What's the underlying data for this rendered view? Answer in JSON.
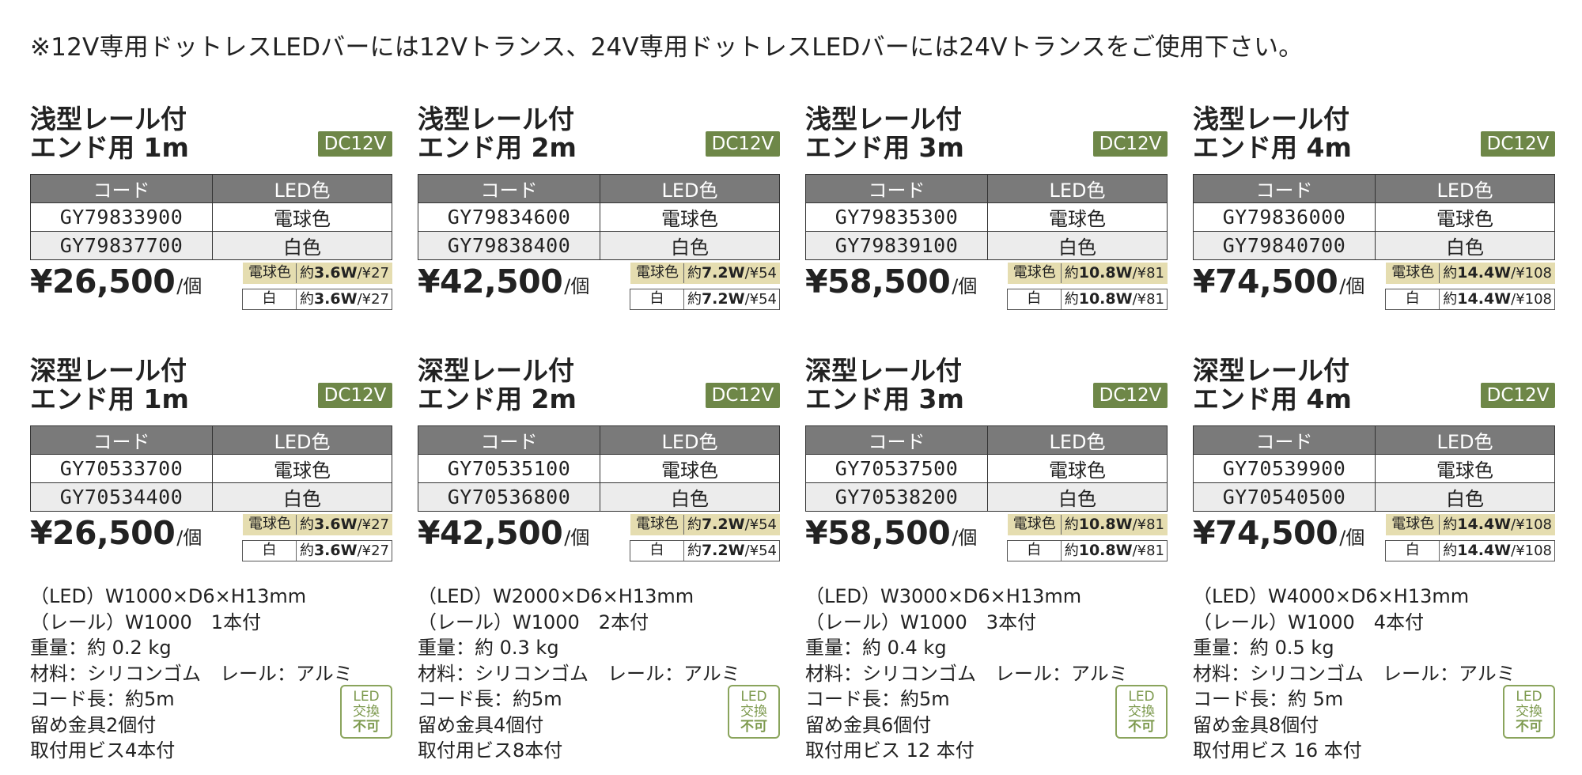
{
  "notice": "※12V専用ドットレスLEDバーには12Vトランス、24V専用ドットレスLEDバーには24Vトランスをご使用下さい。",
  "table_headers": {
    "code": "コード",
    "led_color": "LED色"
  },
  "dc_label": "DC12V",
  "price_unit": "/個",
  "watt_labels": {
    "bulb": "電球色",
    "white": "白",
    "approx": "約"
  },
  "led_badge": {
    "line1": "LED",
    "line2": "交換",
    "line3": "不可"
  },
  "cards": [
    {
      "title1": "浅型レール付",
      "title2": "エンド用 1m",
      "rows": [
        {
          "code": "GY79833900",
          "color": "電球色"
        },
        {
          "code": "GY79837700",
          "color": "白色"
        }
      ],
      "price": "¥26,500",
      "watt1": "3.6W",
      "cost1": "/¥27",
      "watt2": "3.6W",
      "cost2": "/¥27"
    },
    {
      "title1": "浅型レール付",
      "title2": "エンド用 2m",
      "rows": [
        {
          "code": "GY79834600",
          "color": "電球色"
        },
        {
          "code": "GY79838400",
          "color": "白色"
        }
      ],
      "price": "¥42,500",
      "watt1": "7.2W",
      "cost1": "/¥54",
      "watt2": "7.2W",
      "cost2": "/¥54"
    },
    {
      "title1": "浅型レール付",
      "title2": "エンド用 3m",
      "rows": [
        {
          "code": "GY79835300",
          "color": "電球色"
        },
        {
          "code": "GY79839100",
          "color": "白色"
        }
      ],
      "price": "¥58,500",
      "watt1": "10.8W",
      "cost1": "/¥81",
      "watt2": "10.8W",
      "cost2": "/¥81"
    },
    {
      "title1": "浅型レール付",
      "title2": "エンド用 4m",
      "rows": [
        {
          "code": "GY79836000",
          "color": "電球色"
        },
        {
          "code": "GY79840700",
          "color": "白色"
        }
      ],
      "price": "¥74,500",
      "watt1": "14.4W",
      "cost1": "/¥108",
      "watt2": "14.4W",
      "cost2": "/¥108"
    },
    {
      "title1": "深型レール付",
      "title2": "エンド用 1m",
      "rows": [
        {
          "code": "GY70533700",
          "color": "電球色"
        },
        {
          "code": "GY70534400",
          "color": "白色"
        }
      ],
      "price": "¥26,500",
      "watt1": "3.6W",
      "cost1": "/¥27",
      "watt2": "3.6W",
      "cost2": "/¥27"
    },
    {
      "title1": "深型レール付",
      "title2": "エンド用 2m",
      "rows": [
        {
          "code": "GY70535100",
          "color": "電球色"
        },
        {
          "code": "GY70536800",
          "color": "白色"
        }
      ],
      "price": "¥42,500",
      "watt1": "7.2W",
      "cost1": "/¥54",
      "watt2": "7.2W",
      "cost2": "/¥54"
    },
    {
      "title1": "深型レール付",
      "title2": "エンド用 3m",
      "rows": [
        {
          "code": "GY70537500",
          "color": "電球色"
        },
        {
          "code": "GY70538200",
          "color": "白色"
        }
      ],
      "price": "¥58,500",
      "watt1": "10.8W",
      "cost1": "/¥81",
      "watt2": "10.8W",
      "cost2": "/¥81"
    },
    {
      "title1": "深型レール付",
      "title2": "エンド用 4m",
      "rows": [
        {
          "code": "GY70539900",
          "color": "電球色"
        },
        {
          "code": "GY70540500",
          "color": "白色"
        }
      ],
      "price": "¥74,500",
      "watt1": "14.4W",
      "cost1": "/¥108",
      "watt2": "14.4W",
      "cost2": "/¥108"
    }
  ],
  "specs": [
    [
      "（LED）W1000×D6×H13mm",
      "（レール）W1000　1本付",
      "重量：約 0.2 kg",
      "材料：シリコンゴム　レール：アルミ",
      "コード長：約5m",
      "留め金具2個付",
      "取付用ビス4本付"
    ],
    [
      "（LED）W2000×D6×H13mm",
      "（レール）W1000　2本付",
      "重量：約 0.3 kg",
      "材料：シリコンゴム　レール：アルミ",
      "コード長：約5m",
      "留め金具4個付",
      "取付用ビス8本付"
    ],
    [
      "（LED）W3000×D6×H13mm",
      "（レール）W1000　3本付",
      "重量：約 0.4 kg",
      "材料：シリコンゴム　レール：アルミ",
      "コード長：約5m",
      "留め金具6個付",
      "取付用ビス 12 本付"
    ],
    [
      "（LED）W4000×D6×H13mm",
      "（レール）W1000　4本付",
      "重量：約 0.5 kg",
      "材料：シリコンゴム　レール：アルミ",
      "コード長：約 5m",
      "留め金具8個付",
      "取付用ビス 16 本付"
    ]
  ]
}
